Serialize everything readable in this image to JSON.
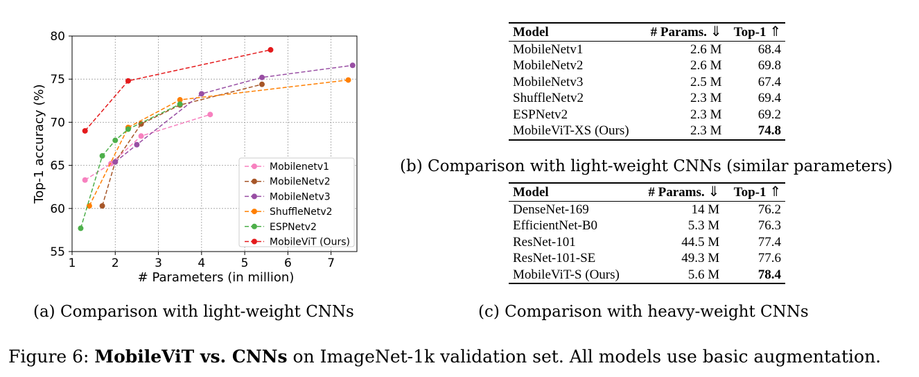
{
  "chart_data": {
    "type": "line",
    "xlabel": "# Parameters (in million)",
    "ylabel": "Top-1 accuracy (%)",
    "xlim": [
      1,
      7.6
    ],
    "ylim": [
      55,
      80
    ],
    "xticks": [
      1,
      2,
      3,
      4,
      5,
      6,
      7
    ],
    "yticks": [
      55,
      60,
      65,
      70,
      75,
      80
    ],
    "grid": true,
    "legend_position": "bottom-right",
    "series": [
      {
        "name": "Mobilenetv1",
        "color": "#f781bf",
        "x": [
          1.3,
          1.9,
          2.6,
          4.2
        ],
        "y": [
          63.3,
          65.2,
          68.4,
          70.9
        ]
      },
      {
        "name": "MobileNetv2",
        "color": "#a65628",
        "x": [
          1.7,
          2.0,
          2.6,
          3.5,
          5.4
        ],
        "y": [
          60.3,
          65.4,
          69.8,
          72.0,
          74.4
        ]
      },
      {
        "name": "MobileNetv3",
        "color": "#984ea3",
        "x": [
          2.0,
          2.5,
          4.0,
          5.4,
          7.5
        ],
        "y": [
          65.4,
          67.4,
          73.3,
          75.2,
          76.6
        ]
      },
      {
        "name": "ShuffleNetv2",
        "color": "#ff7f00",
        "x": [
          1.4,
          2.3,
          3.5,
          7.4
        ],
        "y": [
          60.3,
          69.4,
          72.6,
          74.9
        ]
      },
      {
        "name": "ESPNetv2",
        "color": "#4daf4a",
        "x": [
          1.2,
          1.7,
          2.0,
          2.3,
          3.5
        ],
        "y": [
          57.7,
          66.1,
          67.9,
          69.2,
          72.1
        ]
      },
      {
        "name": "MobileViT (Ours)",
        "color": "#e41a1c",
        "x": [
          1.3,
          2.3,
          5.6
        ],
        "y": [
          69.0,
          74.8,
          78.4
        ]
      }
    ]
  },
  "captions": {
    "a": "(a) Comparison with light-weight CNNs",
    "b": "(b) Comparison with light-weight CNNs (similar parameters)",
    "c": "(c) Comparison with heavy-weight CNNs"
  },
  "figure_caption": {
    "prefix": "Figure 6: ",
    "bold": "MobileViT vs. CNNs",
    "rest": " on ImageNet-1k validation set. All models use basic augmentation."
  },
  "table_b": {
    "headers": {
      "model": "Model",
      "params": "# Params.",
      "params_arrow": "⇓",
      "top1": "Top-1",
      "top1_arrow": "⇑"
    },
    "rows": [
      {
        "model": "MobileNetv1",
        "params": "2.6 M",
        "top1": "68.4"
      },
      {
        "model": "MobileNetv2",
        "params": "2.6 M",
        "top1": "69.8"
      },
      {
        "model": "MobileNetv3",
        "params": "2.5 M",
        "top1": "67.4"
      },
      {
        "model": "ShuffleNetv2",
        "params": "2.3 M",
        "top1": "69.4"
      },
      {
        "model": "ESPNetv2",
        "params": "2.3 M",
        "top1": "69.2"
      },
      {
        "model": "MobileViT-XS (Ours)",
        "params": "2.3 M",
        "top1": "74.8"
      }
    ]
  },
  "table_c": {
    "headers": {
      "model": "Model",
      "params": "# Params.",
      "params_arrow": "⇓",
      "top1": "Top-1",
      "top1_arrow": "⇑"
    },
    "rows": [
      {
        "model": "DenseNet-169",
        "params": "14 M",
        "top1": "76.2"
      },
      {
        "model": "EfficientNet-B0",
        "params": "5.3 M",
        "top1": "76.3"
      },
      {
        "model": "ResNet-101",
        "params": "44.5 M",
        "top1": "77.4"
      },
      {
        "model": "ResNet-101-SE",
        "params": "49.3 M",
        "top1": "77.6"
      },
      {
        "model": "MobileViT-S (Ours)",
        "params": "5.6 M",
        "top1": "78.4"
      }
    ]
  }
}
